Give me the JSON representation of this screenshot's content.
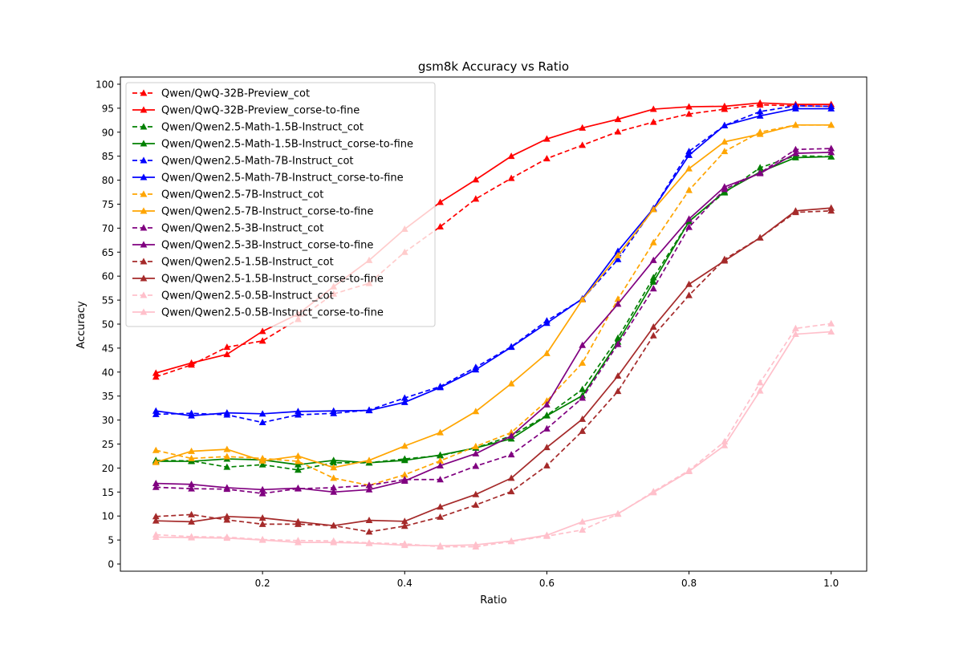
{
  "chart_data": {
    "type": "line",
    "title": "gsm8k Accuracy vs Ratio",
    "xlabel": "Ratio",
    "ylabel": "Accuracy",
    "xlim": [
      0.0,
      1.05
    ],
    "ylim": [
      -1.5,
      101.5
    ],
    "xticks": [
      0.2,
      0.4,
      0.6,
      0.8,
      1.0
    ],
    "xtick_labels": [
      "0.2",
      "0.4",
      "0.6",
      "0.8",
      "1.0"
    ],
    "yticks": [
      0,
      5,
      10,
      15,
      20,
      25,
      30,
      35,
      40,
      45,
      50,
      55,
      60,
      65,
      70,
      75,
      80,
      85,
      90,
      95,
      100
    ],
    "ytick_labels": [
      "0",
      "5",
      "10",
      "15",
      "20",
      "25",
      "30",
      "35",
      "40",
      "45",
      "50",
      "55",
      "60",
      "65",
      "70",
      "75",
      "80",
      "85",
      "90",
      "95",
      "100"
    ],
    "grid": false,
    "legend_position": "top-left",
    "x": [
      0.05,
      0.1,
      0.15,
      0.2,
      0.25,
      0.3,
      0.35,
      0.4,
      0.45,
      0.5,
      0.55,
      0.6,
      0.65,
      0.7,
      0.75,
      0.8,
      0.85,
      0.9,
      0.95,
      1.0
    ],
    "series": [
      {
        "name": "Qwen/QwQ-32B-Preview_cot",
        "color": "#ff0000",
        "dashed": true,
        "values": [
          39.0,
          41.5,
          45.2,
          46.5,
          51.0,
          56.3,
          58.5,
          65.0,
          70.3,
          76.1,
          80.4,
          84.5,
          87.3,
          90.1,
          92.1,
          93.8,
          94.8,
          95.7,
          95.5,
          95.4
        ]
      },
      {
        "name": "Qwen/QwQ-32B-Preview_corse-to-fine",
        "color": "#ff0000",
        "dashed": false,
        "values": [
          39.8,
          41.9,
          43.7,
          48.5,
          52.1,
          57.8,
          63.3,
          69.8,
          75.4,
          80.1,
          85.0,
          88.6,
          90.9,
          92.7,
          94.8,
          95.3,
          95.4,
          96.1,
          95.8,
          95.8
        ]
      },
      {
        "name": "Qwen/Qwen2.5-Math-1.5B-Instruct_cot",
        "color": "#008000",
        "dashed": true,
        "values": [
          21.6,
          21.5,
          20.2,
          20.7,
          19.6,
          21.1,
          21.1,
          21.9,
          22.6,
          24.2,
          26.7,
          31.0,
          36.4,
          47.1,
          59.7,
          71.4,
          77.4,
          82.6,
          85.1,
          84.9
        ]
      },
      {
        "name": "Qwen/Qwen2.5-Math-1.5B-Instruct_corse-to-fine",
        "color": "#008000",
        "dashed": false,
        "values": [
          21.4,
          21.4,
          21.9,
          21.7,
          20.7,
          21.6,
          21.1,
          21.6,
          22.7,
          24.2,
          26.1,
          30.9,
          35.1,
          46.3,
          58.8,
          71.4,
          77.6,
          81.7,
          84.7,
          84.9
        ]
      },
      {
        "name": "Qwen/Qwen2.5-Math-7B-Instruct_cot",
        "color": "#0000ff",
        "dashed": true,
        "values": [
          31.2,
          31.4,
          31.1,
          29.5,
          31.1,
          31.4,
          32.1,
          34.6,
          37.0,
          41.0,
          45.3,
          50.7,
          55.2,
          63.5,
          74.1,
          86.0,
          91.4,
          94.3,
          95.5,
          95.4
        ]
      },
      {
        "name": "Qwen/Qwen2.5-Math-7B-Instruct_corse-to-fine",
        "color": "#0000ff",
        "dashed": false,
        "values": [
          31.9,
          30.9,
          31.5,
          31.3,
          31.8,
          31.9,
          32.0,
          33.7,
          36.8,
          40.5,
          45.2,
          50.2,
          55.3,
          65.2,
          74.1,
          85.2,
          91.4,
          93.4,
          94.9,
          94.9
        ]
      },
      {
        "name": "Qwen/Qwen2.5-7B-Instruct_cot",
        "color": "#ffa500",
        "dashed": true,
        "values": [
          23.7,
          22.0,
          22.4,
          22.0,
          21.4,
          17.9,
          16.4,
          18.6,
          21.5,
          24.5,
          27.4,
          34.0,
          41.9,
          55.2,
          67.0,
          77.9,
          86.0,
          90.0,
          91.5,
          91.5
        ]
      },
      {
        "name": "Qwen/Qwen2.5-7B-Instruct_corse-to-fine",
        "color": "#ffa500",
        "dashed": false,
        "values": [
          21.2,
          23.5,
          23.9,
          21.5,
          22.5,
          20.1,
          21.6,
          24.6,
          27.4,
          31.8,
          37.6,
          43.9,
          55.1,
          64.3,
          73.9,
          82.4,
          88.0,
          89.6,
          91.5,
          91.5
        ]
      },
      {
        "name": "Qwen/Qwen2.5-3B-Instruct_cot",
        "color": "#800080",
        "dashed": true,
        "values": [
          16.0,
          15.7,
          15.6,
          14.7,
          15.7,
          15.9,
          16.4,
          17.6,
          17.6,
          20.4,
          22.8,
          28.2,
          34.6,
          45.8,
          57.4,
          70.2,
          78.1,
          81.5,
          86.4,
          86.6
        ]
      },
      {
        "name": "Qwen/Qwen2.5-3B-Instruct_corse-to-fine",
        "color": "#800080",
        "dashed": false,
        "values": [
          16.8,
          16.6,
          15.9,
          15.5,
          15.8,
          15.0,
          15.5,
          17.3,
          20.5,
          23.0,
          26.7,
          33.2,
          45.6,
          54.2,
          63.3,
          71.9,
          78.6,
          81.4,
          85.6,
          85.8
        ]
      },
      {
        "name": "Qwen/Qwen2.5-1.5B-Instruct_cot",
        "color": "#a52a2a",
        "dashed": true,
        "values": [
          9.9,
          10.3,
          9.2,
          8.3,
          8.3,
          8.0,
          6.7,
          7.9,
          9.8,
          12.3,
          15.1,
          20.5,
          27.7,
          36.0,
          47.6,
          56.0,
          63.5,
          68.0,
          73.3,
          73.6
        ]
      },
      {
        "name": "Qwen/Qwen2.5-1.5B-Instruct_corse-to-fine",
        "color": "#a52a2a",
        "dashed": false,
        "values": [
          9.0,
          8.8,
          9.9,
          9.6,
          8.8,
          8.0,
          9.1,
          8.9,
          11.9,
          14.5,
          17.9,
          24.3,
          30.2,
          39.2,
          49.4,
          58.3,
          63.2,
          68.0,
          73.6,
          74.2
        ]
      },
      {
        "name": "Qwen/Qwen2.5-0.5B-Instruct_cot",
        "color": "#ffc0cb",
        "dashed": true,
        "values": [
          6.1,
          5.7,
          5.6,
          5.1,
          4.9,
          4.8,
          4.4,
          4.2,
          3.6,
          3.6,
          4.7,
          5.8,
          7.1,
          10.4,
          15.1,
          19.5,
          25.5,
          37.8,
          49.1,
          50.1
        ]
      },
      {
        "name": "Qwen/Qwen2.5-0.5B-Instruct_corse-to-fine",
        "color": "#ffc0cb",
        "dashed": false,
        "values": [
          5.6,
          5.5,
          5.4,
          5.0,
          4.5,
          4.5,
          4.3,
          3.9,
          3.8,
          4.0,
          4.8,
          6.0,
          8.8,
          10.5,
          14.9,
          19.3,
          24.7,
          36.1,
          47.9,
          48.4
        ]
      }
    ]
  }
}
